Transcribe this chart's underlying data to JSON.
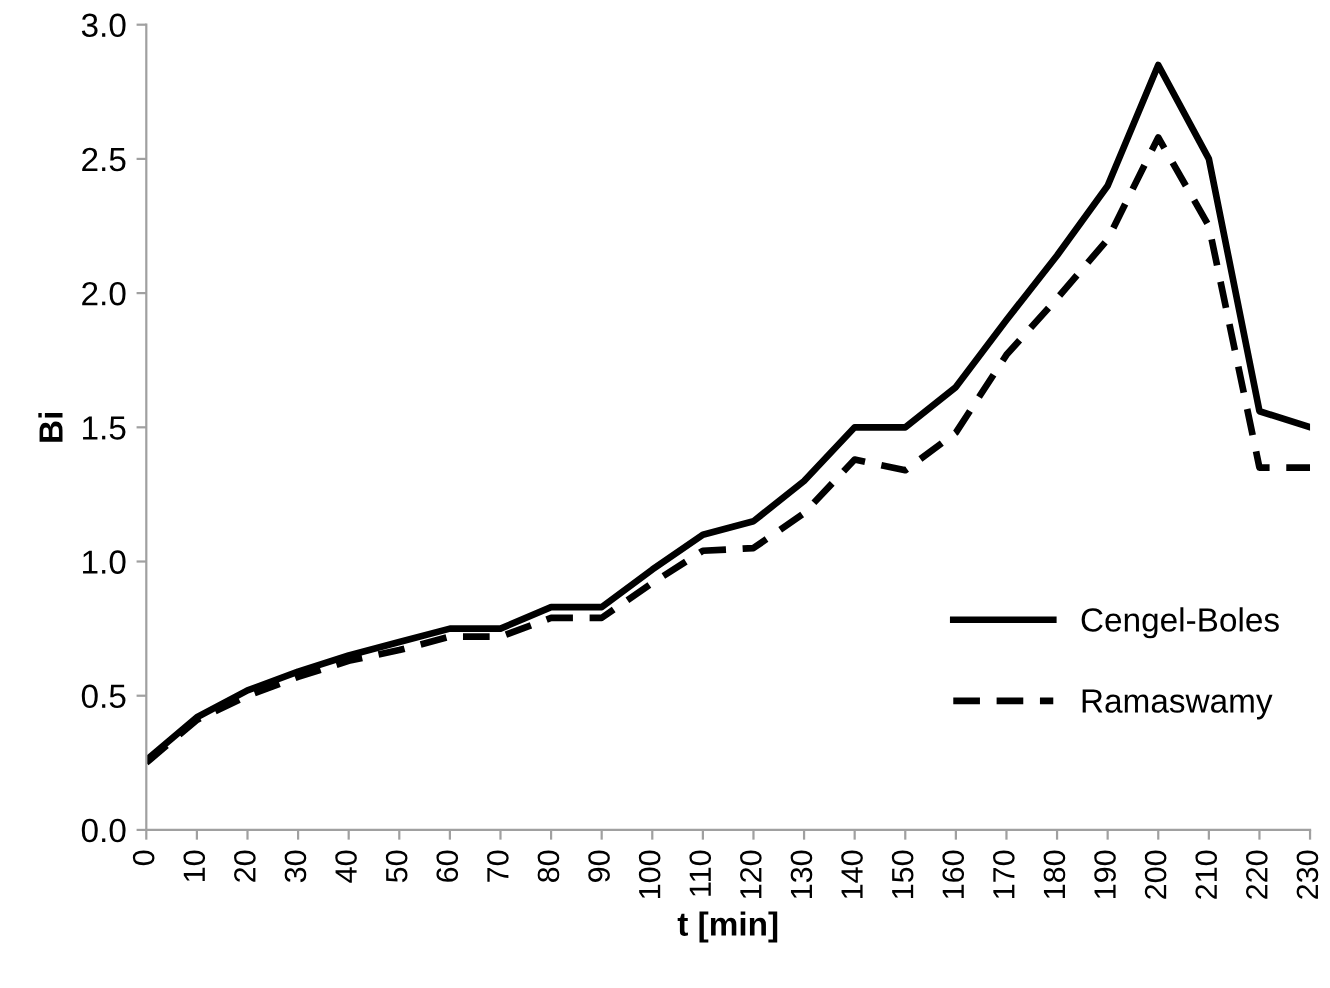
{
  "chart_data": {
    "type": "line",
    "xlabel": "t [min]",
    "ylabel": "Bi",
    "categories": [
      "0",
      "10",
      "20",
      "30",
      "40",
      "50",
      "60",
      "70",
      "80",
      "90",
      "100",
      "110",
      "120",
      "130",
      "140",
      "150",
      "160",
      "170",
      "180",
      "190",
      "200",
      "210",
      "220",
      "230"
    ],
    "series": [
      {
        "name": "Cengel-Boles",
        "color": "#000000",
        "line_style": "solid",
        "values": [
          0.26,
          0.42,
          0.52,
          0.59,
          0.65,
          0.7,
          0.75,
          0.75,
          0.83,
          0.83,
          0.97,
          1.1,
          1.15,
          1.3,
          1.5,
          1.5,
          1.65,
          1.9,
          2.14,
          2.4,
          2.85,
          2.5,
          1.56,
          1.5
        ]
      },
      {
        "name": "Ramaswamy",
        "color": "#000000",
        "line_style": "dashed",
        "values": [
          0.25,
          0.41,
          0.5,
          0.57,
          0.63,
          0.67,
          0.72,
          0.72,
          0.79,
          0.79,
          0.92,
          1.04,
          1.05,
          1.18,
          1.38,
          1.34,
          1.48,
          1.77,
          1.98,
          2.2,
          2.58,
          2.25,
          1.35,
          1.35
        ]
      }
    ],
    "ylim": [
      0,
      3.0
    ],
    "yticks": [
      {
        "value": 0,
        "label": "0.0"
      },
      {
        "value": 0.5,
        "label": "0.5"
      },
      {
        "value": 1.0,
        "label": "1.0"
      },
      {
        "value": 1.5,
        "label": "1.5"
      },
      {
        "value": 2.0,
        "label": "2.0"
      },
      {
        "value": 2.5,
        "label": "2.5"
      },
      {
        "value": 3.0,
        "label": "3.0"
      }
    ],
    "grid": false,
    "legend": "bottom right"
  }
}
